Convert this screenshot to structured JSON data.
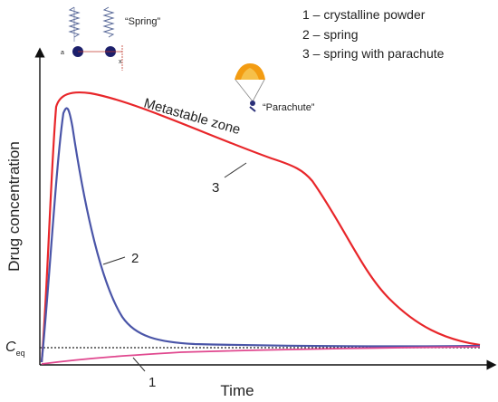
{
  "chart_data": {
    "type": "line",
    "xlabel": "Time",
    "ylabel": "Drug concentration",
    "baseline_label": {
      "main": "C",
      "sub": "eq"
    },
    "legend": [
      "1 – crystalline powder",
      "2 – spring",
      "3 – spring with parachute"
    ],
    "series": [
      {
        "name": "1",
        "color": "#e0488f"
      },
      {
        "name": "2",
        "color": "#4a55a8"
      },
      {
        "name": "3",
        "color": "#e8262a"
      }
    ],
    "annotations": {
      "zone": "Metastable zone",
      "spring": "“Spring”",
      "parachute": "“Parachute”",
      "spring_marker_a": "a",
      "spring_marker_x": "x"
    },
    "curve_labels": [
      "1",
      "2",
      "3"
    ]
  }
}
